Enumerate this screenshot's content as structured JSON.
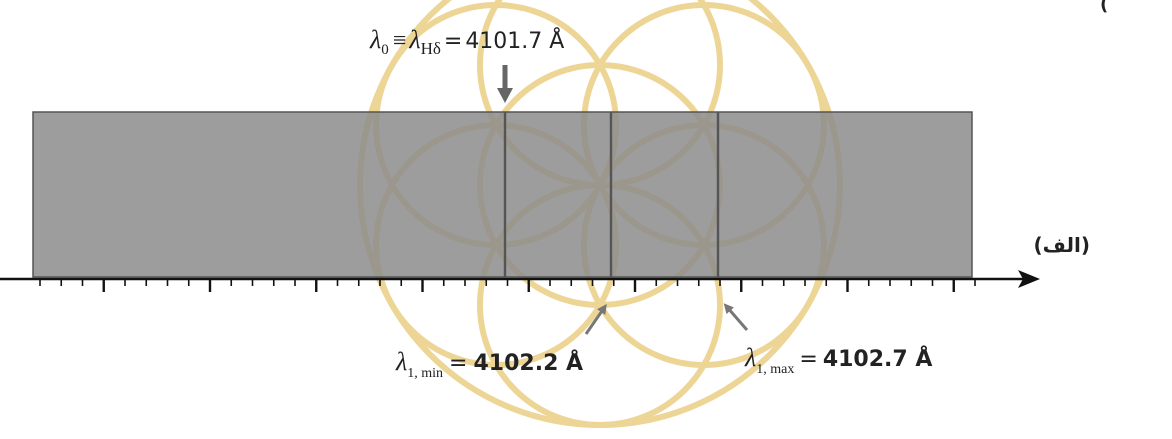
{
  "colors": {
    "spectrum_fill": "#8c8c8c",
    "spectrum_stroke": "#555555",
    "line_color": "#555555",
    "pointer_arrow": "#777777",
    "axis": "#111111",
    "watermark": "#e8c874"
  },
  "labels": {
    "lambda0": {
      "lhs": "λ",
      "lhs_sub": "0",
      "equiv": "≡",
      "mid": "λ",
      "mid_sub": "Hδ",
      "eq": "=",
      "value": "4101.7 Å"
    },
    "lambda_min": {
      "sym": "λ",
      "sub": "1, min",
      "eq": "=",
      "value": "4102.2 Å"
    },
    "lambda_max": {
      "sym": "λ",
      "sub": "1, max",
      "eq": "=",
      "value": "4102.7 Å"
    },
    "panel_label": "(الف)",
    "top_right_fragment": "("
  },
  "watermark": {
    "icon": "flower-of-life-logo"
  }
}
